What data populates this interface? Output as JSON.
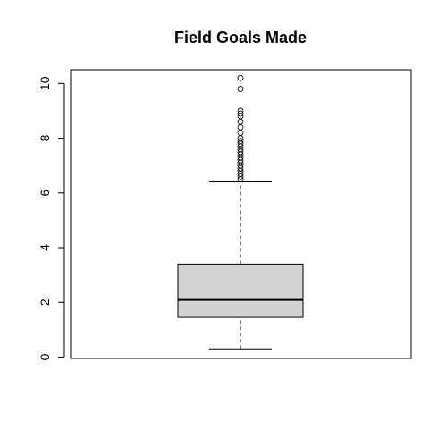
{
  "chart_data": {
    "type": "box",
    "title": "Field Goals Made",
    "xlabel": "",
    "ylabel": "",
    "ylim": [
      -0.05,
      10.5
    ],
    "y_ticks": [
      0,
      2,
      4,
      6,
      8,
      10
    ],
    "y_tick_labels": [
      "0",
      "2",
      "4",
      "6",
      "8",
      "10"
    ],
    "box": {
      "min": 0.3,
      "q1": 1.45,
      "median": 2.1,
      "q3": 3.4,
      "max": 6.4
    },
    "outliers": [
      6.5,
      6.6,
      6.7,
      6.8,
      6.9,
      7.0,
      7.1,
      7.2,
      7.3,
      7.4,
      7.5,
      7.6,
      7.7,
      7.8,
      7.9,
      8.0,
      8.2,
      8.4,
      8.6,
      8.8,
      8.9,
      9.0,
      9.8,
      10.2
    ],
    "colors": {
      "box_fill": "#d3d3d3",
      "stroke": "#000000"
    },
    "grid": false
  }
}
